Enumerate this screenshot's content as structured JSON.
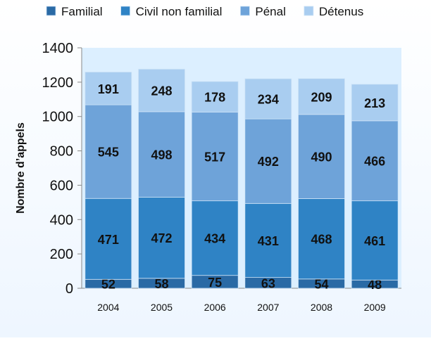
{
  "chart_data": {
    "type": "bar",
    "stacked": true,
    "categories": [
      "2004",
      "2005",
      "2006",
      "2007",
      "2008",
      "2009"
    ],
    "series": [
      {
        "name": "Familial",
        "values": [
          52,
          58,
          75,
          63,
          54,
          48
        ],
        "color": "#2a6aa5"
      },
      {
        "name": "Civil non familial",
        "values": [
          471,
          472,
          434,
          431,
          468,
          461
        ],
        "color": "#2f83c5"
      },
      {
        "name": "Pénal",
        "values": [
          545,
          498,
          517,
          492,
          490,
          466
        ],
        "color": "#6ea3d9"
      },
      {
        "name": "Détenus",
        "values": [
          191,
          248,
          178,
          234,
          209,
          213
        ],
        "color": "#a9cdf0"
      }
    ],
    "title": "",
    "xlabel": "",
    "ylabel": "Nombre d’appels",
    "ylim": [
      0,
      1400
    ],
    "yticks": [
      0,
      200,
      400,
      600,
      800,
      1000,
      1200,
      1400
    ],
    "grid": false,
    "legend": "top",
    "plot_background": "#dcefff"
  }
}
